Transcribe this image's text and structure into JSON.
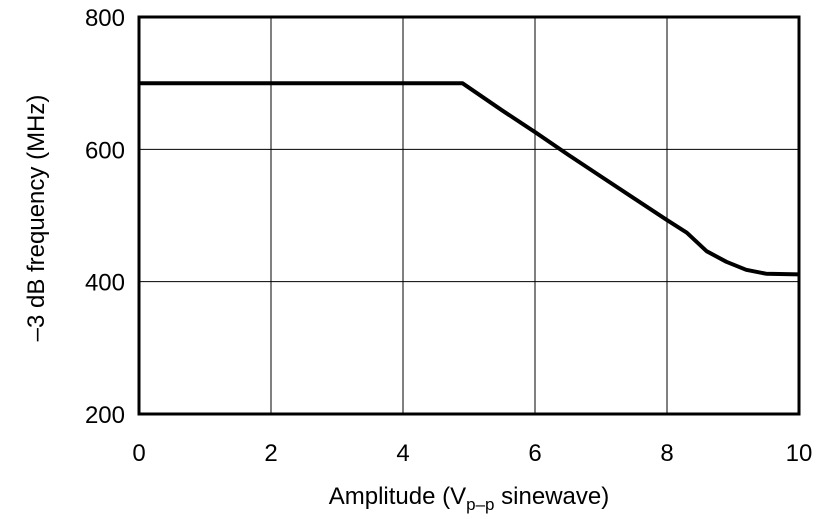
{
  "chart_data": {
    "type": "line",
    "title": "",
    "xlabel": "Amplitude (V",
    "xlabel_subscript": "p–p",
    "xlabel_suffix": " sinewave)",
    "ylabel": "–3 dB frequency (MHz)",
    "xlim": [
      0,
      10
    ],
    "ylim": [
      200,
      800
    ],
    "x_ticks": [
      0,
      2,
      4,
      6,
      8,
      10
    ],
    "y_ticks": [
      200,
      400,
      600,
      800
    ],
    "x_tick_labels": [
      "0",
      "2",
      "4",
      "6",
      "8",
      "10"
    ],
    "y_tick_labels": [
      "200",
      "400",
      "600",
      "800"
    ],
    "grid": true,
    "legend": "none",
    "series": [
      {
        "color": "#000000",
        "x": [
          0,
          4.9,
          5.5,
          6.0,
          6.5,
          7.0,
          7.5,
          8.0,
          8.3,
          8.6,
          8.9,
          9.2,
          9.5,
          10.0
        ],
        "y": [
          700,
          700,
          659,
          626,
          592,
          559,
          526,
          493,
          474,
          446,
          430,
          418,
          412,
          411
        ]
      }
    ]
  }
}
